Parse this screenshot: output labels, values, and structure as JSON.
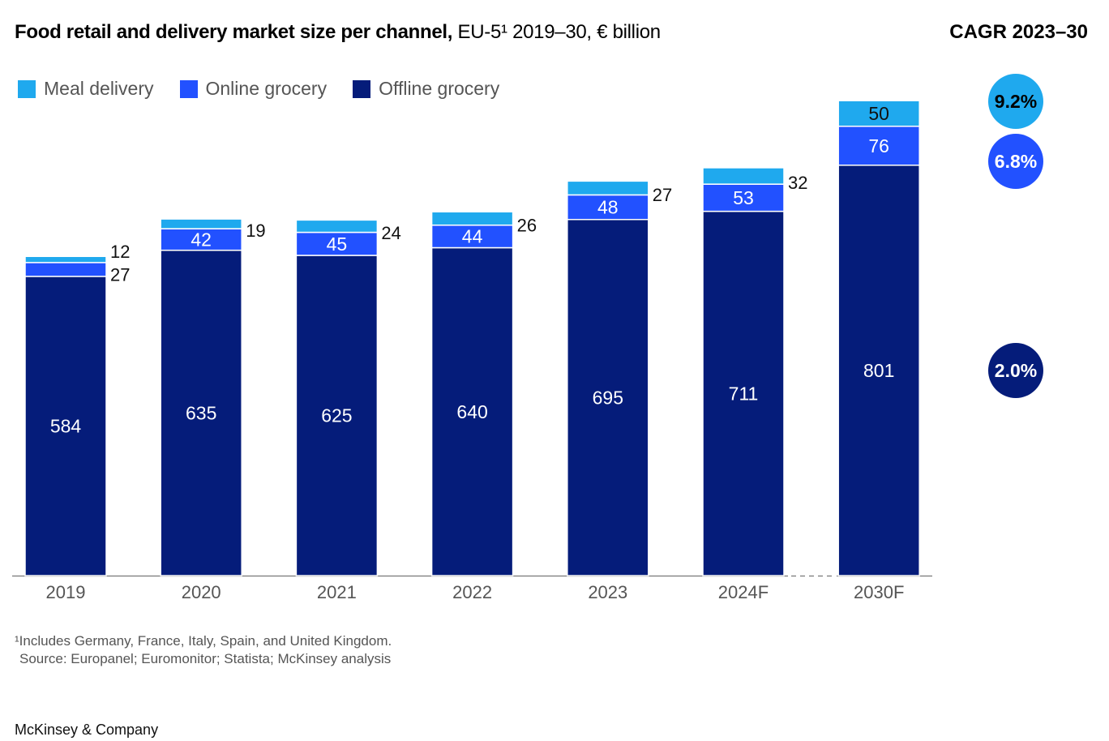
{
  "title_bold": "Food retail and delivery market size per channel,",
  "title_rest": "EU-5¹ 2019–30, € billion",
  "cagr_title": "CAGR 2023–30",
  "footnote": "¹Includes Germany, France, Italy, Spain, and United Kingdom.",
  "source": "Source: Europanel; Euromonitor; Statista; McKinsey analysis",
  "brand": "McKinsey & Company",
  "chart_data": {
    "type": "bar",
    "stacked": true,
    "title": "Food retail and delivery market size per channel, EU-5 2019–30, € billion",
    "xlabel": "",
    "ylabel": "€ billion",
    "categories": [
      "2019",
      "2020",
      "2021",
      "2022",
      "2023",
      "2024F",
      "2030F"
    ],
    "series": [
      {
        "name": "Offline grocery",
        "color": "#051c7a",
        "values": [
          584,
          635,
          625,
          640,
          695,
          711,
          801
        ],
        "cagr": "2.0%"
      },
      {
        "name": "Online grocery",
        "color": "#2251ff",
        "values": [
          27,
          42,
          45,
          44,
          48,
          53,
          76
        ],
        "cagr": "6.8%"
      },
      {
        "name": "Meal delivery",
        "color": "#1fa9ee",
        "values": [
          12,
          19,
          24,
          26,
          27,
          32,
          50
        ],
        "cagr": "9.2%"
      }
    ],
    "legend_order": [
      "Meal delivery",
      "Online grocery",
      "Offline grocery"
    ],
    "legend_position": "top-left",
    "ylim": [
      0,
      930
    ],
    "grid": false
  }
}
